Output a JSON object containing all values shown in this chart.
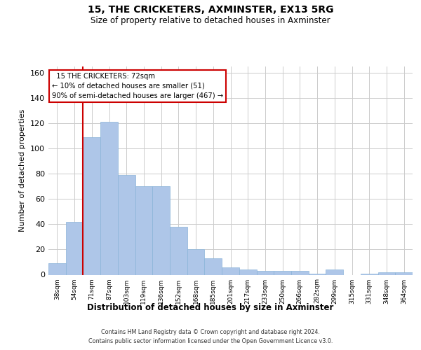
{
  "title1": "15, THE CRICKETERS, AXMINSTER, EX13 5RG",
  "title2": "Size of property relative to detached houses in Axminster",
  "xlabel": "Distribution of detached houses by size in Axminster",
  "ylabel": "Number of detached properties",
  "bar_labels": [
    "38sqm",
    "54sqm",
    "71sqm",
    "87sqm",
    "103sqm",
    "119sqm",
    "136sqm",
    "152sqm",
    "168sqm",
    "185sqm",
    "201sqm",
    "217sqm",
    "233sqm",
    "250sqm",
    "266sqm",
    "282sqm",
    "299sqm",
    "315sqm",
    "331sqm",
    "348sqm",
    "364sqm"
  ],
  "bar_values": [
    9,
    42,
    109,
    121,
    79,
    70,
    70,
    38,
    20,
    13,
    6,
    4,
    3,
    3,
    3,
    1,
    4,
    0,
    1,
    2,
    2
  ],
  "bar_color": "#aec6e8",
  "bar_edgecolor": "#8ab4d8",
  "background_color": "#ffffff",
  "grid_color": "#cccccc",
  "vline_color": "#cc0000",
  "vline_bar_index": 2,
  "annotation_line1": "  15 THE CRICKETERS: 72sqm",
  "annotation_line2": "← 10% of detached houses are smaller (51)",
  "annotation_line3": "90% of semi-detached houses are larger (467) →",
  "ylim": [
    0,
    165
  ],
  "yticks": [
    0,
    20,
    40,
    60,
    80,
    100,
    120,
    140,
    160
  ],
  "footnote1": "Contains HM Land Registry data © Crown copyright and database right 2024.",
  "footnote2": "Contains public sector information licensed under the Open Government Licence v3.0."
}
